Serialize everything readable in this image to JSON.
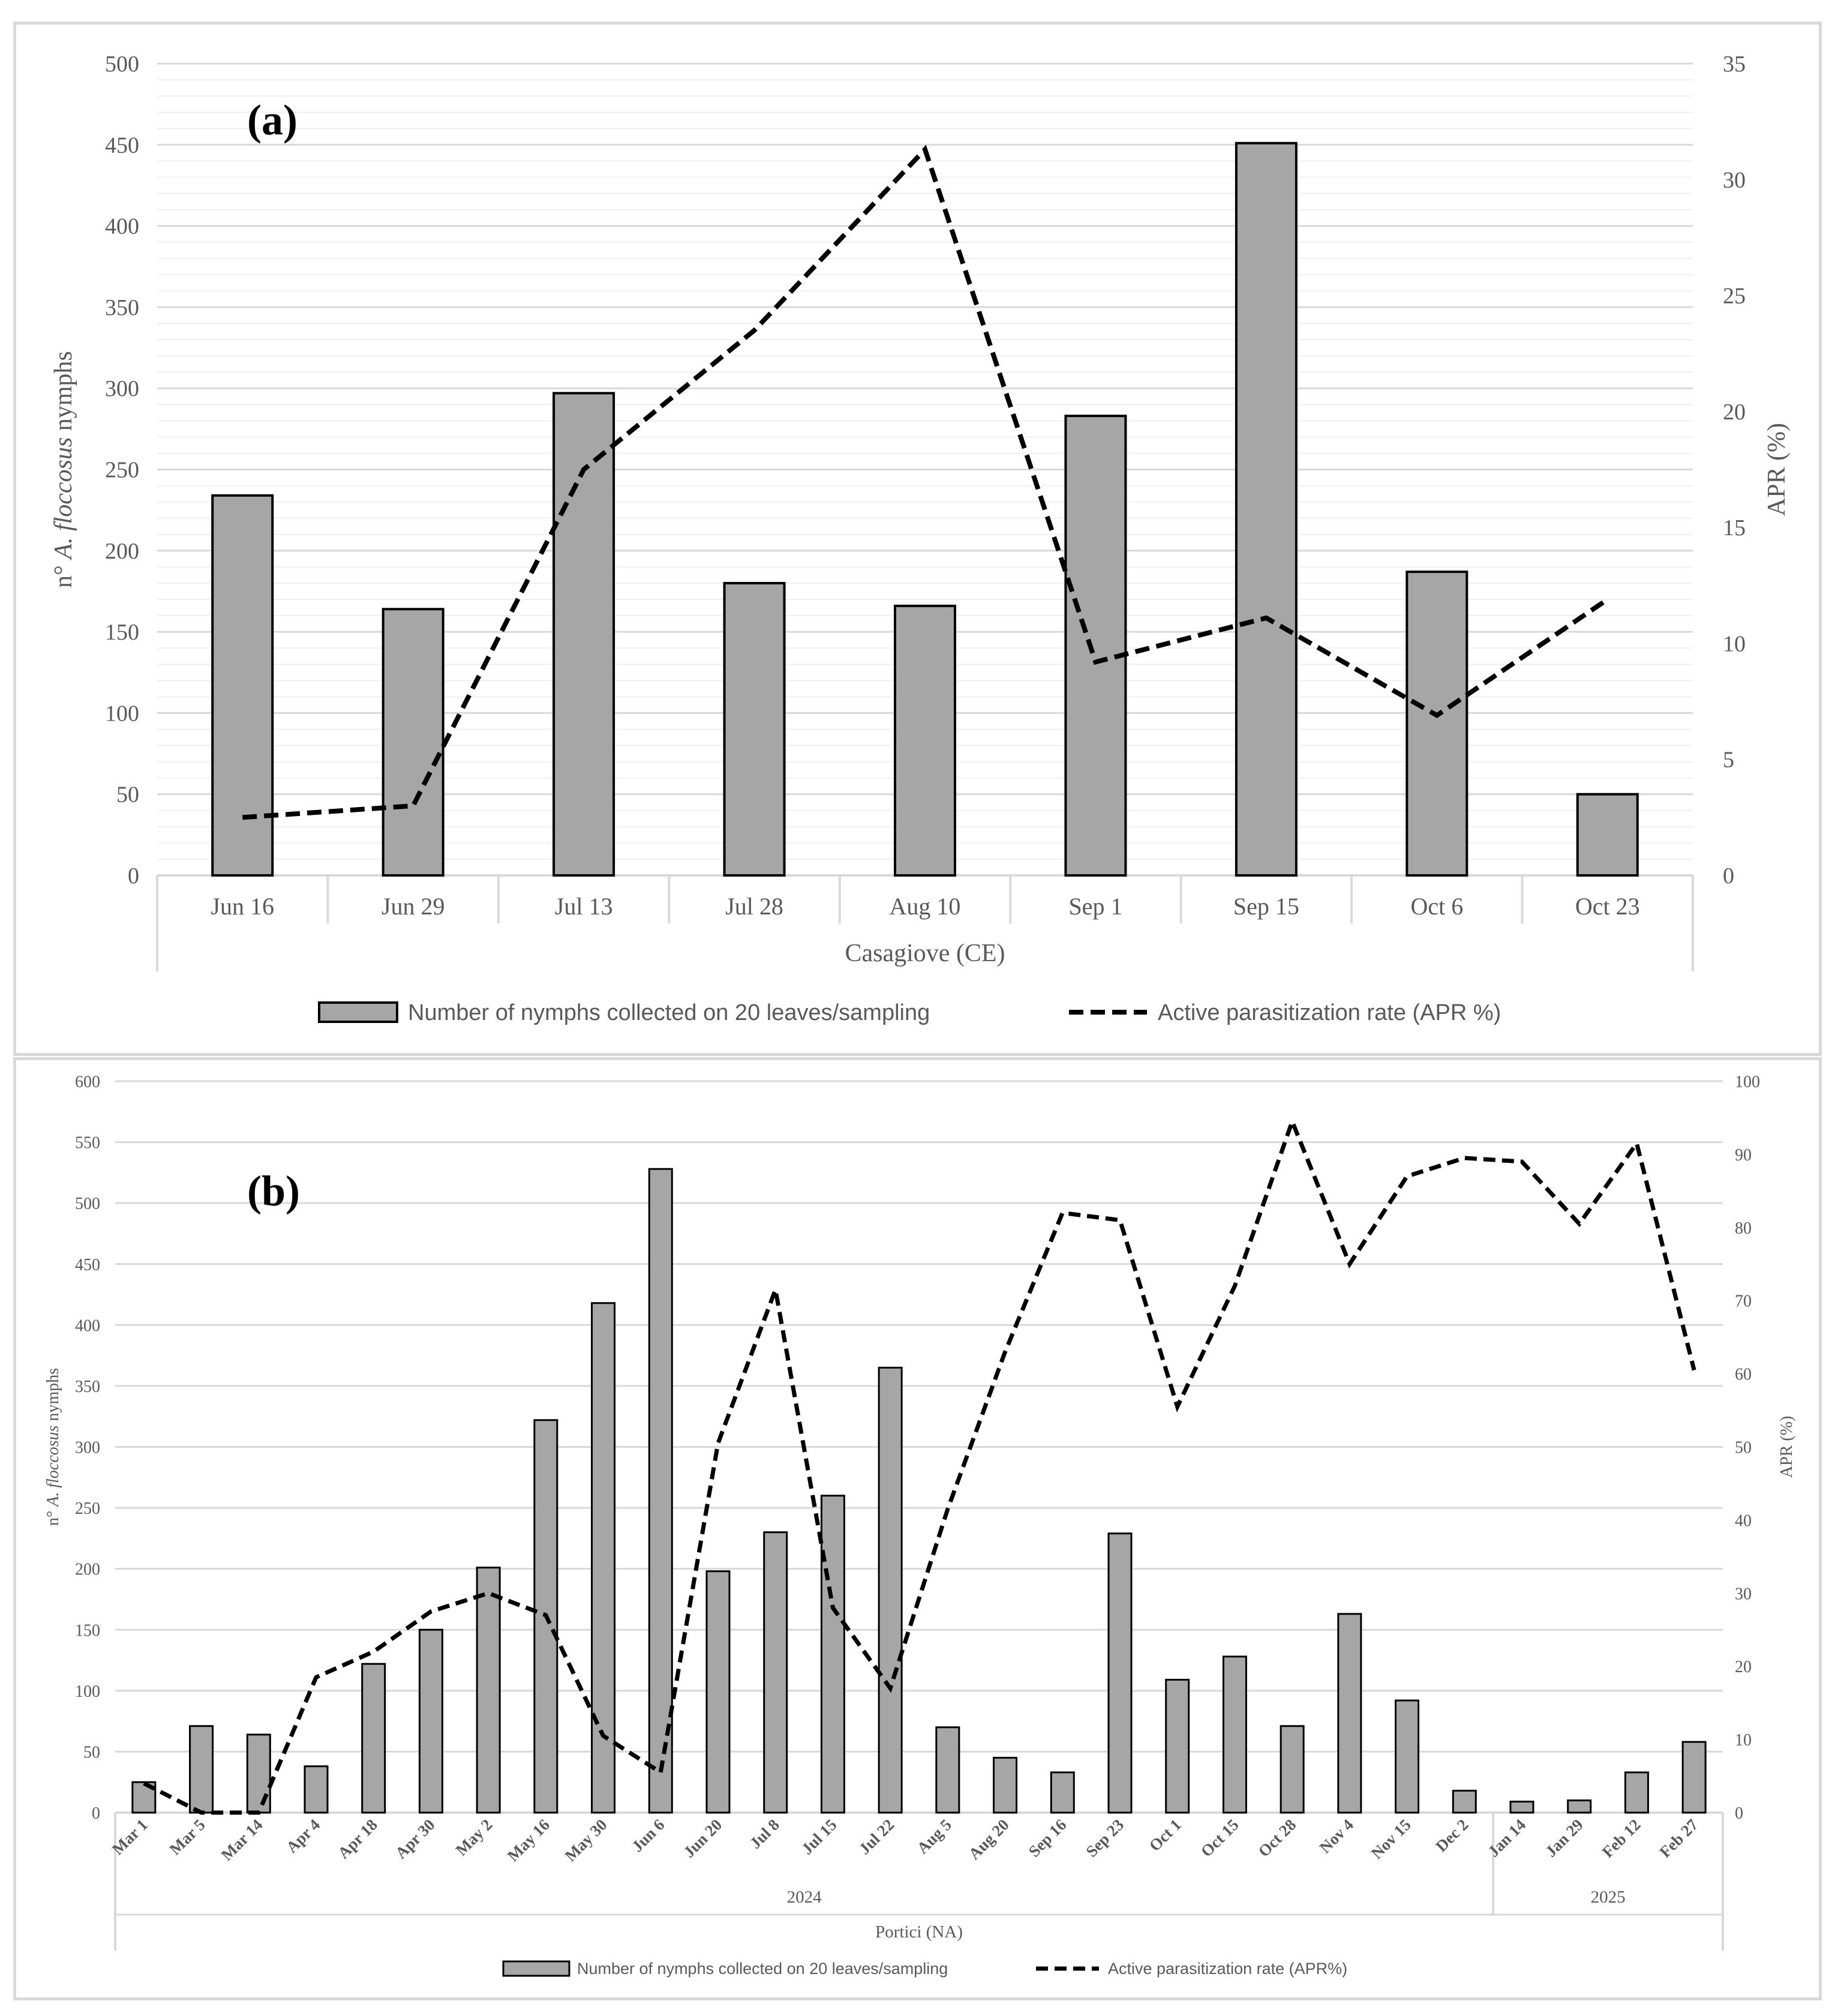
{
  "colors": {
    "bar_fill": "#a6a6a6",
    "bar_stroke": "#000000",
    "line": "#000000",
    "major_grid": "#d9d9d9",
    "minor_grid": "#f0f0f0",
    "axis_text": "#595959",
    "frame": "#d9d9d9"
  },
  "chart_data": [
    {
      "type": "bar",
      "panel_label": "(a)",
      "categories": [
        "Jun 16",
        "Jun 29",
        "Jul 13",
        "Jul 28",
        "Aug 10",
        "Sep 1",
        "Sep 15",
        "Oct 6",
        "Oct 23"
      ],
      "group_label": "Casagiove (CE)",
      "series": [
        {
          "name": "Number of nymphs collected on 20 leaves/sampling",
          "type": "bar",
          "axis": "left",
          "values": [
            234,
            164,
            297,
            180,
            166,
            283,
            451,
            187,
            50
          ]
        },
        {
          "name": "Active parasitization rate  (APR %)",
          "type": "line-dashed",
          "axis": "right",
          "values": [
            2.5,
            3.0,
            17.5,
            23.5,
            31.3,
            9.2,
            11.1,
            6.9,
            11.9
          ]
        }
      ],
      "ylabel_prefix": "n° ",
      "ylabel_italic": "A. floccosus",
      "ylabel_suffix": " nymphs",
      "y2label": "APR (%)",
      "ylim": [
        0,
        500
      ],
      "yticks": [
        0,
        50,
        100,
        150,
        200,
        250,
        300,
        350,
        400,
        450,
        500
      ],
      "y2lim": [
        0,
        35
      ],
      "y2ticks": [
        0,
        5,
        10,
        15,
        20,
        25,
        30,
        35
      ],
      "grid": true,
      "legend_position": "bottom"
    },
    {
      "type": "bar",
      "panel_label": "(b)",
      "categories": [
        "Mar 1",
        "Mar 5",
        "Mar 14",
        "Apr 4",
        "Apr 18",
        "Apr 30",
        "May 2",
        "May 16",
        "May 30",
        "Jun 6",
        "Jun 20",
        "Jul 8",
        "Jul 15",
        "Jul 22",
        "Aug 5",
        "Aug 20",
        "Sep 16",
        "Sep 23",
        "Oct 1",
        "Oct 15",
        "Oct 28",
        "Nov 4",
        "Nov 15",
        "Dec 2",
        "Jan 14",
        "Jan 29",
        "Feb 12",
        "Feb 27"
      ],
      "year_groups": [
        {
          "label": "2024",
          "count": 24
        },
        {
          "label": "2025",
          "count": 4
        }
      ],
      "group_label": "Portici (NA)",
      "series": [
        {
          "name": "Number of nymphs collected on 20 leaves/sampling",
          "type": "bar",
          "axis": "left",
          "values": [
            25,
            71,
            64,
            38,
            122,
            150,
            201,
            322,
            418,
            528,
            198,
            230,
            260,
            365,
            70,
            45,
            33,
            229,
            109,
            128,
            71,
            163,
            92,
            18,
            9,
            10,
            33,
            58
          ]
        },
        {
          "name": "Active parasitization rate (APR%)",
          "type": "line-dashed",
          "axis": "right",
          "values": [
            4,
            0,
            0,
            18.5,
            22,
            27.5,
            30,
            27,
            10.5,
            5.5,
            50.5,
            71.5,
            28,
            17,
            41.5,
            63,
            82,
            81,
            55.5,
            72,
            94.5,
            75,
            87,
            89.5,
            89,
            80.5,
            91.5,
            60.5
          ]
        }
      ],
      "ylabel_prefix": "n° ",
      "ylabel_italic": "A. floccosus",
      "ylabel_suffix": " nymphs",
      "y2label": "APR (%)",
      "ylim": [
        0,
        600
      ],
      "yticks": [
        0,
        50,
        100,
        150,
        200,
        250,
        300,
        350,
        400,
        450,
        500,
        550,
        600
      ],
      "y2lim": [
        0,
        100
      ],
      "y2ticks": [
        0,
        10,
        20,
        30,
        40,
        50,
        60,
        70,
        80,
        90,
        100
      ],
      "grid": true,
      "legend_position": "bottom"
    }
  ]
}
